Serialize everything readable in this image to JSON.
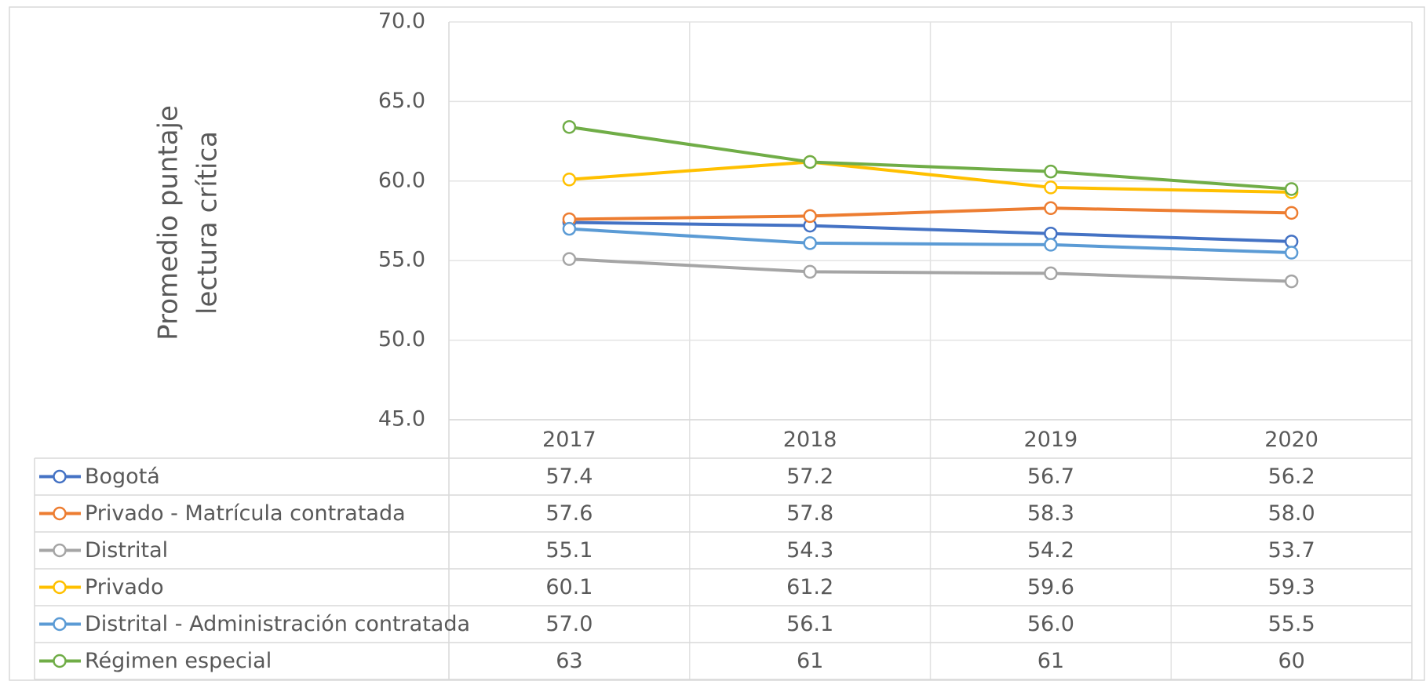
{
  "chart_data": {
    "type": "line",
    "ylabel": [
      "Promedio puntaje",
      "lectura crítica"
    ],
    "categories": [
      "2017",
      "2018",
      "2019",
      "2020"
    ],
    "series": [
      {
        "name": "Bogotá",
        "color": "#4472c4",
        "values": [
          57.4,
          57.2,
          56.7,
          56.2
        ],
        "value_labels": [
          "57.4",
          "57.2",
          "56.7",
          "56.2"
        ]
      },
      {
        "name": "Privado - Matrícula contratada",
        "color": "#ed7d31",
        "values": [
          57.6,
          57.8,
          58.3,
          58.0
        ],
        "value_labels": [
          "57.6",
          "57.8",
          "58.3",
          "58.0"
        ]
      },
      {
        "name": "Distrital",
        "color": "#a5a5a5",
        "values": [
          55.1,
          54.3,
          54.2,
          53.7
        ],
        "value_labels": [
          "55.1",
          "54.3",
          "54.2",
          "53.7"
        ]
      },
      {
        "name": "Privado",
        "color": "#ffc000",
        "values": [
          60.1,
          61.2,
          59.6,
          59.3
        ],
        "value_labels": [
          "60.1",
          "61.2",
          "59.6",
          "59.3"
        ]
      },
      {
        "name": "Distrital - Administración contratada",
        "color": "#5b9bd5",
        "values": [
          57.0,
          56.1,
          56.0,
          55.5
        ],
        "value_labels": [
          "57.0",
          "56.1",
          "56.0",
          "55.5"
        ]
      },
      {
        "name": "Régimen especial",
        "color": "#70ad47",
        "values": [
          63.4,
          61.2,
          60.6,
          59.5
        ],
        "value_labels": [
          "63",
          "61",
          "61",
          "60"
        ]
      }
    ],
    "ylim": [
      45,
      70
    ],
    "yticks": [
      {
        "value": 45,
        "label": "45.0"
      },
      {
        "value": 50,
        "label": "50.0"
      },
      {
        "value": 55,
        "label": "55.0"
      },
      {
        "value": 60,
        "label": "60.0"
      },
      {
        "value": 65,
        "label": "65.0"
      },
      {
        "value": 70,
        "label": "70.0"
      }
    ],
    "grid": true
  }
}
